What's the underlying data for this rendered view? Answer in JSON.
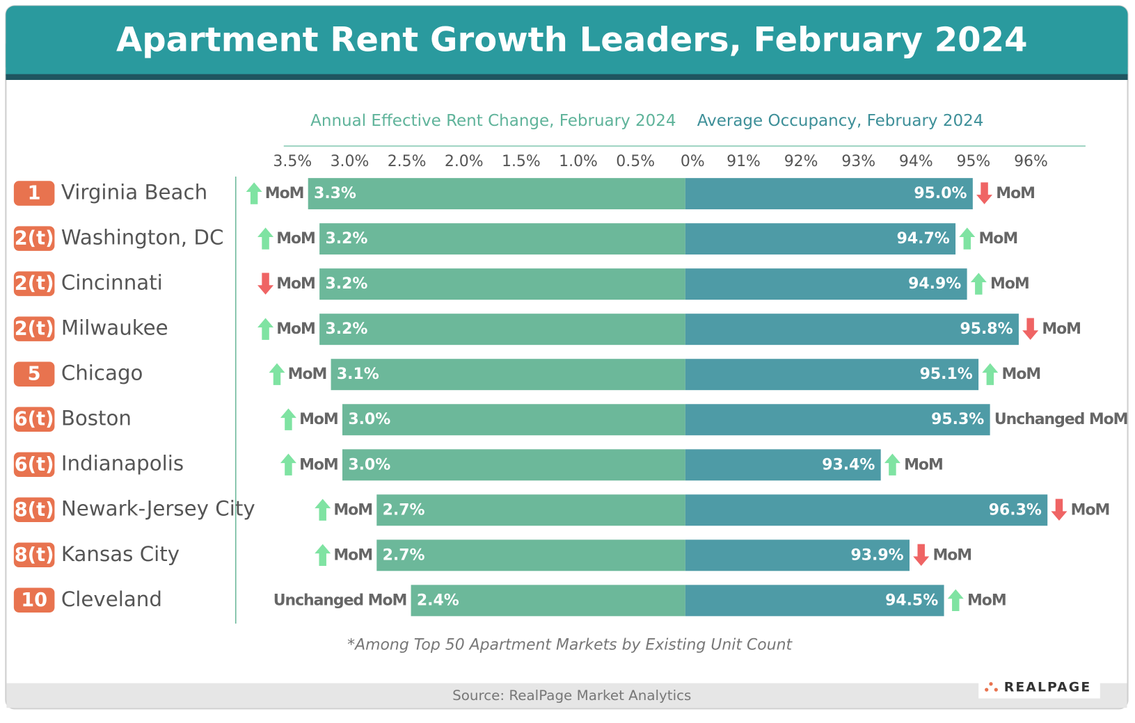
{
  "chart_data": {
    "type": "diverging-bar",
    "title": "Apartment Rent Growth Leaders, February 2024",
    "footnote": "*Among Top 50 Apartment Markets by Existing Unit Count",
    "source": "Source: RealPage Market Analytics",
    "logo": "REALPAGE",
    "ranks": [
      "1",
      "2(t)",
      "2(t)",
      "2(t)",
      "5",
      "6(t)",
      "6(t)",
      "8(t)",
      "8(t)",
      "10"
    ],
    "categories": [
      "Virginia Beach",
      "Washington, DC",
      "Cincinnati",
      "Milwaukee",
      "Chicago",
      "Boston",
      "Indianapolis",
      "Newark-Jersey City",
      "Kansas City",
      "Cleveland"
    ],
    "series": [
      {
        "name": "Annual Effective Rent Change, February 2024",
        "color": "#6cb89a",
        "side": "left",
        "values": [
          3.3,
          3.2,
          3.2,
          3.2,
          3.1,
          3.0,
          3.0,
          2.7,
          2.7,
          2.4
        ],
        "value_labels": [
          "3.3%",
          "3.2%",
          "3.2%",
          "3.2%",
          "3.1%",
          "3.0%",
          "3.0%",
          "2.7%",
          "2.7%",
          "2.4%"
        ],
        "mom_labels": [
          "MoM",
          "MoM",
          "MoM",
          "MoM",
          "MoM",
          "MoM",
          "MoM",
          "MoM",
          "MoM",
          "Unchanged MoM"
        ],
        "mom_direction": [
          "up",
          "up",
          "down",
          "up",
          "up",
          "up",
          "up",
          "up",
          "up",
          "none"
        ]
      },
      {
        "name": "Average Occupancy, February 2024",
        "color": "#4e9ba6",
        "side": "right",
        "values": [
          95.0,
          94.7,
          94.9,
          95.8,
          95.1,
          95.3,
          93.4,
          96.3,
          93.9,
          94.5
        ],
        "value_labels": [
          "95.0%",
          "94.7%",
          "94.9%",
          "95.8%",
          "95.1%",
          "95.3%",
          "93.4%",
          "96.3%",
          "93.9%",
          "94.5%"
        ],
        "mom_labels": [
          "MoM",
          "MoM",
          "MoM",
          "MoM",
          "MoM",
          "Unchanged MoM",
          "MoM",
          "MoM",
          "MoM",
          "MoM"
        ],
        "mom_direction": [
          "down",
          "up",
          "up",
          "down",
          "up",
          "none",
          "up",
          "down",
          "down",
          "up"
        ]
      }
    ],
    "xlim": [
      3.5,
      0
    ],
    "xticks": [
      {
        "value": 3.5,
        "label": "3.5%"
      },
      {
        "value": 3.0,
        "label": "3.0%"
      },
      {
        "value": 2.5,
        "label": "2.5%"
      },
      {
        "value": 2.0,
        "label": "2.0%"
      },
      {
        "value": 1.5,
        "label": "1.5%"
      },
      {
        "value": 1.0,
        "label": "1.0%"
      },
      {
        "value": 0.5,
        "label": "0.5%"
      },
      {
        "value": 0,
        "label": "0%"
      }
    ],
    "x2lim": [
      90,
      97
    ],
    "x2ticks": [
      {
        "value": 91,
        "label": "91%"
      },
      {
        "value": 92,
        "label": "92%"
      },
      {
        "value": 93,
        "label": "93%"
      },
      {
        "value": 94,
        "label": "94%"
      },
      {
        "value": 95,
        "label": "95%"
      },
      {
        "value": 96,
        "label": "96%"
      }
    ],
    "up_color": "#7fe3a2",
    "down_color": "#ef6464",
    "rank_color": "#e8734f"
  }
}
